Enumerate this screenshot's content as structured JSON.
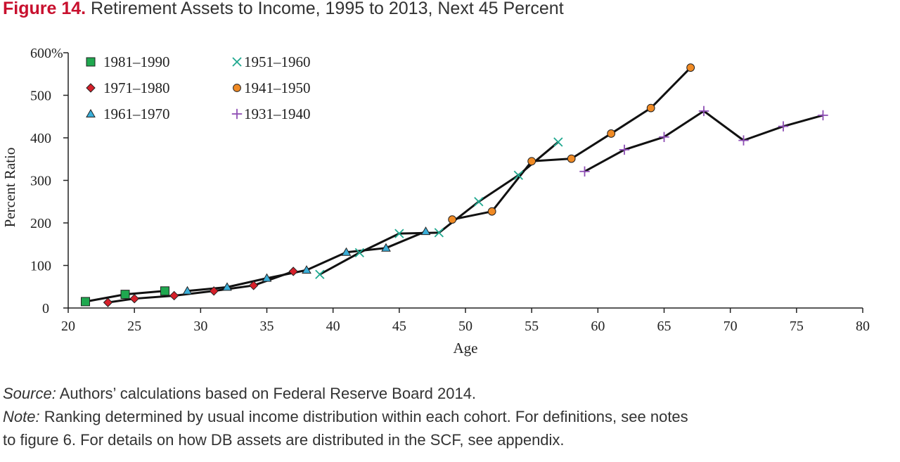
{
  "figure": {
    "label": "Figure 14.",
    "title": "Retirement Assets to Income, 1995 to 2013, Next 45 Percent"
  },
  "source": {
    "label": "Source:",
    "text": "Authors’ calculations based on Federal Reserve Board 2014."
  },
  "note": {
    "label": "Note:",
    "line1": "Ranking determined by usual income distribution within each cohort. For definitions, see notes",
    "line2": "to figure 6. For details on how DB assets are distributed in the SCF, see appendix."
  },
  "chart_data": {
    "type": "line",
    "title": "Retirement Assets to Income, 1995 to 2013, Next 45 Percent",
    "xlabel": "Age",
    "ylabel": "Percent Ratio",
    "xlim": [
      20,
      80
    ],
    "ylim": [
      0,
      600
    ],
    "x_ticks": [
      "20",
      "25",
      "30",
      "35",
      "40",
      "45",
      "50",
      "55",
      "60",
      "65",
      "70",
      "75",
      "80"
    ],
    "y_ticks": [
      "0",
      "100",
      "200",
      "300",
      "400",
      "500",
      "600%"
    ],
    "y_tick_values": [
      0,
      100,
      200,
      300,
      400,
      500,
      600
    ],
    "grid": false,
    "legend_position": "top-left",
    "series": [
      {
        "name": "1981–1990",
        "marker": "square",
        "color": "#1fa84f",
        "points": [
          [
            21.3,
            15
          ],
          [
            24.3,
            32
          ],
          [
            27.3,
            40
          ]
        ]
      },
      {
        "name": "1971–1980",
        "marker": "diamond",
        "color": "#d6202a",
        "points": [
          [
            23,
            13
          ],
          [
            25,
            22
          ],
          [
            28,
            29
          ],
          [
            31,
            40
          ],
          [
            34,
            53
          ],
          [
            37,
            86
          ]
        ]
      },
      {
        "name": "1961–1970",
        "marker": "triangle",
        "color": "#3aaed8",
        "points": [
          [
            29,
            40
          ],
          [
            32,
            49
          ],
          [
            35,
            70
          ],
          [
            38,
            89
          ],
          [
            41,
            131
          ],
          [
            44,
            141
          ],
          [
            47,
            180
          ]
        ]
      },
      {
        "name": "1951–1960",
        "marker": "x",
        "color": "#1fa88f",
        "points": [
          [
            39,
            79
          ],
          [
            42,
            130
          ],
          [
            45,
            175
          ],
          [
            48,
            177
          ],
          [
            51,
            250
          ],
          [
            54,
            312
          ],
          [
            57,
            390
          ]
        ]
      },
      {
        "name": "1941–1950",
        "marker": "circle",
        "color": "#f08a24",
        "points": [
          [
            49,
            208
          ],
          [
            52,
            227
          ],
          [
            55,
            345
          ],
          [
            58,
            351
          ],
          [
            61,
            410
          ],
          [
            64,
            470
          ],
          [
            67,
            565
          ]
        ]
      },
      {
        "name": "1931–1940",
        "marker": "plus",
        "color": "#8e4fb5",
        "points": [
          [
            59,
            321
          ],
          [
            62,
            372
          ],
          [
            65,
            402
          ],
          [
            68,
            463
          ],
          [
            71,
            394
          ],
          [
            74,
            427
          ],
          [
            77,
            453
          ]
        ]
      }
    ]
  }
}
